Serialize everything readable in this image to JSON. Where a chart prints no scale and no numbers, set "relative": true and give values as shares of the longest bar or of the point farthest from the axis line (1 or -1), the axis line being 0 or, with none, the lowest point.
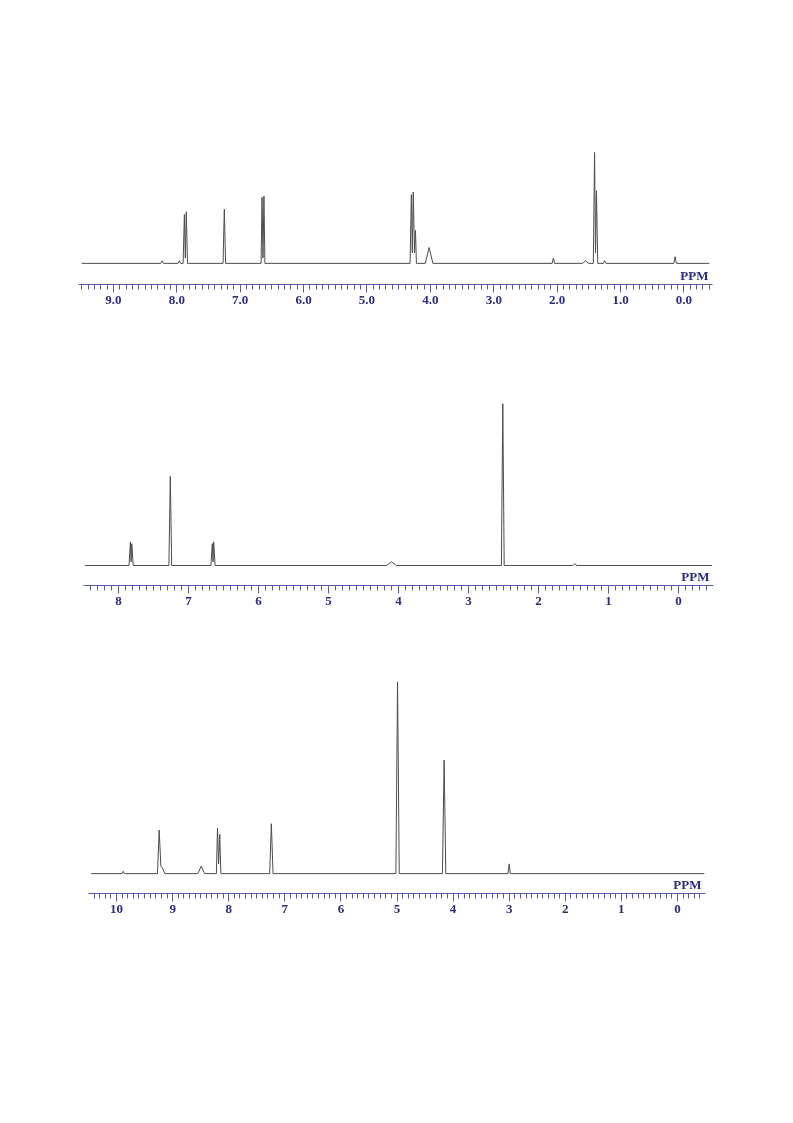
{
  "chart_data": [
    {
      "type": "line",
      "relative": true,
      "xlabel": "PPM",
      "color": "#4d4d4d",
      "xlim": [
        9.55,
        -0.45
      ],
      "xticks": [
        {
          "value": 9,
          "label": "9.0"
        },
        {
          "value": 8,
          "label": "8.0"
        },
        {
          "value": 7,
          "label": "7.0"
        },
        {
          "value": 6,
          "label": "6.0"
        },
        {
          "value": 5,
          "label": "5.0"
        },
        {
          "value": 4,
          "label": "4.0"
        },
        {
          "value": 3,
          "label": "3.0"
        },
        {
          "value": 2,
          "label": "2.0"
        },
        {
          "value": 1,
          "label": "1.0"
        },
        {
          "value": 0,
          "label": "0.0"
        },
        {
          "value": 9.5,
          "label": null
        },
        {
          "value": 9.4,
          "label": null
        },
        {
          "value": 9.3,
          "label": null
        },
        {
          "value": 9.2,
          "label": null
        },
        {
          "value": 9.1,
          "label": null
        },
        {
          "value": 8.9,
          "label": null
        },
        {
          "value": 8.8,
          "label": null
        },
        {
          "value": 8.7,
          "label": null
        },
        {
          "value": 8.6,
          "label": null
        },
        {
          "value": 8.5,
          "label": null
        },
        {
          "value": 8.4,
          "label": null
        },
        {
          "value": 8.3,
          "label": null
        },
        {
          "value": 8.2,
          "label": null
        },
        {
          "value": 8.1,
          "label": null
        },
        {
          "value": 7.9,
          "label": null
        },
        {
          "value": 7.8,
          "label": null
        },
        {
          "value": 7.7,
          "label": null
        },
        {
          "value": 7.6,
          "label": null
        },
        {
          "value": 7.5,
          "label": null
        },
        {
          "value": 7.4,
          "label": null
        },
        {
          "value": 7.3,
          "label": null
        },
        {
          "value": 7.2,
          "label": null
        },
        {
          "value": 7.1,
          "label": null
        },
        {
          "value": 6.9,
          "label": null
        },
        {
          "value": 6.8,
          "label": null
        },
        {
          "value": 6.7,
          "label": null
        },
        {
          "value": 6.6,
          "label": null
        },
        {
          "value": 6.5,
          "label": null
        },
        {
          "value": 6.4,
          "label": null
        },
        {
          "value": 6.3,
          "label": null
        },
        {
          "value": 6.2,
          "label": null
        },
        {
          "value": 6.1,
          "label": null
        },
        {
          "value": 5.9,
          "label": null
        },
        {
          "value": 5.8,
          "label": null
        },
        {
          "value": 5.7,
          "label": null
        },
        {
          "value": 5.6,
          "label": null
        },
        {
          "value": 5.5,
          "label": null
        },
        {
          "value": 5.4,
          "label": null
        },
        {
          "value": 5.3,
          "label": null
        },
        {
          "value": 5.2,
          "label": null
        },
        {
          "value": 5.1,
          "label": null
        },
        {
          "value": 4.9,
          "label": null
        },
        {
          "value": 4.8,
          "label": null
        },
        {
          "value": 4.7,
          "label": null
        },
        {
          "value": 4.6,
          "label": null
        },
        {
          "value": 4.5,
          "label": null
        },
        {
          "value": 4.4,
          "label": null
        },
        {
          "value": 4.3,
          "label": null
        },
        {
          "value": 4.2,
          "label": null
        },
        {
          "value": 4.1,
          "label": null
        },
        {
          "value": 3.9,
          "label": null
        },
        {
          "value": 3.8,
          "label": null
        },
        {
          "value": 3.7,
          "label": null
        },
        {
          "value": 3.6,
          "label": null
        },
        {
          "value": 3.5,
          "label": null
        },
        {
          "value": 3.4,
          "label": null
        },
        {
          "value": 3.3,
          "label": null
        },
        {
          "value": 3.2,
          "label": null
        },
        {
          "value": 3.1,
          "label": null
        },
        {
          "value": 2.9,
          "label": null
        },
        {
          "value": 2.8,
          "label": null
        },
        {
          "value": 2.7,
          "label": null
        },
        {
          "value": 2.6,
          "label": null
        },
        {
          "value": 2.5,
          "label": null
        },
        {
          "value": 2.4,
          "label": null
        },
        {
          "value": 2.3,
          "label": null
        },
        {
          "value": 2.2,
          "label": null
        },
        {
          "value": 2.1,
          "label": null
        },
        {
          "value": 1.9,
          "label": null
        },
        {
          "value": 1.8,
          "label": null
        },
        {
          "value": 1.7,
          "label": null
        },
        {
          "value": 1.6,
          "label": null
        },
        {
          "value": 1.5,
          "label": null
        },
        {
          "value": 1.4,
          "label": null
        },
        {
          "value": 1.3,
          "label": null
        },
        {
          "value": 1.2,
          "label": null
        },
        {
          "value": 1.1,
          "label": null
        },
        {
          "value": 0.9,
          "label": null
        },
        {
          "value": 0.8,
          "label": null
        },
        {
          "value": 0.7,
          "label": null
        },
        {
          "value": 0.6,
          "label": null
        },
        {
          "value": 0.5,
          "label": null
        },
        {
          "value": 0.4,
          "label": null
        },
        {
          "value": 0.3,
          "label": null
        },
        {
          "value": 0.2,
          "label": null
        },
        {
          "value": 0.1,
          "label": null
        },
        {
          "value": -0.1,
          "label": null
        },
        {
          "value": -0.2,
          "label": null
        },
        {
          "value": -0.3,
          "label": null
        },
        {
          "value": -0.4,
          "label": null
        }
      ],
      "x": [
        9.5,
        8.25,
        8.23,
        8.21,
        7.98,
        7.96,
        7.94,
        7.9,
        7.88,
        7.865,
        7.85,
        7.83,
        7.27,
        7.25,
        7.23,
        6.67,
        6.655,
        6.64,
        6.625,
        6.61,
        4.32,
        4.3,
        4.285,
        4.27,
        4.25,
        4.235,
        4.22,
        4.08,
        4.02,
        3.96,
        2.08,
        2.06,
        2.04,
        1.6,
        1.55,
        1.5,
        1.43,
        1.41,
        1.395,
        1.38,
        1.36,
        1.27,
        1.25,
        1.23,
        0.16,
        0.14,
        0.12,
        -0.4
      ],
      "values": [
        0.16,
        0.16,
        0.18,
        0.16,
        0.16,
        0.18,
        0.16,
        0.16,
        0.53,
        0.2,
        0.55,
        0.16,
        0.16,
        0.57,
        0.16,
        0.16,
        0.66,
        0.2,
        0.67,
        0.16,
        0.16,
        0.68,
        0.24,
        0.7,
        0.24,
        0.41,
        0.16,
        0.16,
        0.28,
        0.16,
        0.16,
        0.2,
        0.16,
        0.16,
        0.18,
        0.16,
        0.16,
        1,
        0.24,
        0.71,
        0.16,
        0.16,
        0.18,
        0.16,
        0.16,
        0.21,
        0.16,
        0.16
      ]
    },
    {
      "type": "line",
      "relative": true,
      "xlabel": "PPM",
      "color": "#4d4d4d",
      "xlim": [
        8.5,
        -0.5
      ],
      "xticks": [
        8,
        7,
        6,
        5,
        4,
        3,
        2,
        1,
        0,
        {
          "value": 8.4,
          "label": null
        },
        {
          "value": 8.3,
          "label": null
        },
        {
          "value": 8.2,
          "label": null
        },
        {
          "value": 8.1,
          "label": null
        },
        {
          "value": 7.9,
          "label": null
        },
        {
          "value": 7.8,
          "label": null
        },
        {
          "value": 7.7,
          "label": null
        },
        {
          "value": 7.6,
          "label": null
        },
        {
          "value": 7.5,
          "label": null
        },
        {
          "value": 7.4,
          "label": null
        },
        {
          "value": 7.3,
          "label": null
        },
        {
          "value": 7.2,
          "label": null
        },
        {
          "value": 7.1,
          "label": null
        },
        {
          "value": 6.9,
          "label": null
        },
        {
          "value": 6.8,
          "label": null
        },
        {
          "value": 6.7,
          "label": null
        },
        {
          "value": 6.6,
          "label": null
        },
        {
          "value": 6.5,
          "label": null
        },
        {
          "value": 6.4,
          "label": null
        },
        {
          "value": 6.3,
          "label": null
        },
        {
          "value": 6.2,
          "label": null
        },
        {
          "value": 6.1,
          "label": null
        },
        {
          "value": 5.9,
          "label": null
        },
        {
          "value": 5.8,
          "label": null
        },
        {
          "value": 5.7,
          "label": null
        },
        {
          "value": 5.6,
          "label": null
        },
        {
          "value": 5.5,
          "label": null
        },
        {
          "value": 5.4,
          "label": null
        },
        {
          "value": 5.3,
          "label": null
        },
        {
          "value": 5.2,
          "label": null
        },
        {
          "value": 5.1,
          "label": null
        },
        {
          "value": 4.9,
          "label": null
        },
        {
          "value": 4.8,
          "label": null
        },
        {
          "value": 4.7,
          "label": null
        },
        {
          "value": 4.6,
          "label": null
        },
        {
          "value": 4.5,
          "label": null
        },
        {
          "value": 4.4,
          "label": null
        },
        {
          "value": 4.3,
          "label": null
        },
        {
          "value": 4.2,
          "label": null
        },
        {
          "value": 4.1,
          "label": null
        },
        {
          "value": 3.9,
          "label": null
        },
        {
          "value": 3.8,
          "label": null
        },
        {
          "value": 3.7,
          "label": null
        },
        {
          "value": 3.6,
          "label": null
        },
        {
          "value": 3.5,
          "label": null
        },
        {
          "value": 3.4,
          "label": null
        },
        {
          "value": 3.3,
          "label": null
        },
        {
          "value": 3.2,
          "label": null
        },
        {
          "value": 3.1,
          "label": null
        },
        {
          "value": 2.9,
          "label": null
        },
        {
          "value": 2.8,
          "label": null
        },
        {
          "value": 2.7,
          "label": null
        },
        {
          "value": 2.6,
          "label": null
        },
        {
          "value": 2.5,
          "label": null
        },
        {
          "value": 2.4,
          "label": null
        },
        {
          "value": 2.3,
          "label": null
        },
        {
          "value": 2.2,
          "label": null
        },
        {
          "value": 2.1,
          "label": null
        },
        {
          "value": 1.9,
          "label": null
        },
        {
          "value": 1.8,
          "label": null
        },
        {
          "value": 1.7,
          "label": null
        },
        {
          "value": 1.6,
          "label": null
        },
        {
          "value": 1.5,
          "label": null
        },
        {
          "value": 1.4,
          "label": null
        },
        {
          "value": 1.3,
          "label": null
        },
        {
          "value": 1.2,
          "label": null
        },
        {
          "value": 1.1,
          "label": null
        },
        {
          "value": 0.9,
          "label": null
        },
        {
          "value": 0.8,
          "label": null
        },
        {
          "value": 0.7,
          "label": null
        },
        {
          "value": 0.6,
          "label": null
        },
        {
          "value": 0.5,
          "label": null
        },
        {
          "value": 0.4,
          "label": null
        },
        {
          "value": 0.3,
          "label": null
        },
        {
          "value": 0.2,
          "label": null
        },
        {
          "value": 0.1,
          "label": null
        },
        {
          "value": -0.1,
          "label": null
        },
        {
          "value": -0.2,
          "label": null
        },
        {
          "value": -0.3,
          "label": null
        },
        {
          "value": -0.4,
          "label": null
        }
      ],
      "x": [
        8.48,
        7.85,
        7.83,
        7.82,
        7.81,
        7.79,
        7.28,
        7.26,
        7.24,
        6.68,
        6.66,
        6.65,
        6.64,
        6.62,
        4.17,
        4.1,
        4.03,
        2.53,
        2.51,
        2.49,
        1.51,
        1.48,
        1.45,
        -0.48
      ],
      "values": [
        0.11,
        0.11,
        0.24,
        0.13,
        0.23,
        0.11,
        0.11,
        0.6,
        0.11,
        0.11,
        0.23,
        0.13,
        0.24,
        0.11,
        0.11,
        0.13,
        0.11,
        0.11,
        1,
        0.11,
        0.11,
        0.12,
        0.11,
        0.11
      ]
    },
    {
      "type": "line",
      "relative": true,
      "xlabel": "PPM",
      "color": "#4d4d4d",
      "xlim": [
        10.5,
        -0.5
      ],
      "xticks": [
        10,
        9,
        8,
        7,
        6,
        5,
        4,
        3,
        2,
        1,
        0,
        {
          "value": 10.4,
          "label": null
        },
        {
          "value": 10.3,
          "label": null
        },
        {
          "value": 10.2,
          "label": null
        },
        {
          "value": 10.1,
          "label": null
        },
        {
          "value": 9.9,
          "label": null
        },
        {
          "value": 9.8,
          "label": null
        },
        {
          "value": 9.7,
          "label": null
        },
        {
          "value": 9.6,
          "label": null
        },
        {
          "value": 9.5,
          "label": null
        },
        {
          "value": 9.4,
          "label": null
        },
        {
          "value": 9.3,
          "label": null
        },
        {
          "value": 9.2,
          "label": null
        },
        {
          "value": 9.1,
          "label": null
        },
        {
          "value": 8.9,
          "label": null
        },
        {
          "value": 8.8,
          "label": null
        },
        {
          "value": 8.7,
          "label": null
        },
        {
          "value": 8.6,
          "label": null
        },
        {
          "value": 8.5,
          "label": null
        },
        {
          "value": 8.4,
          "label": null
        },
        {
          "value": 8.3,
          "label": null
        },
        {
          "value": 8.2,
          "label": null
        },
        {
          "value": 8.1,
          "label": null
        },
        {
          "value": 7.9,
          "label": null
        },
        {
          "value": 7.8,
          "label": null
        },
        {
          "value": 7.7,
          "label": null
        },
        {
          "value": 7.6,
          "label": null
        },
        {
          "value": 7.5,
          "label": null
        },
        {
          "value": 7.4,
          "label": null
        },
        {
          "value": 7.3,
          "label": null
        },
        {
          "value": 7.2,
          "label": null
        },
        {
          "value": 7.1,
          "label": null
        },
        {
          "value": 6.9,
          "label": null
        },
        {
          "value": 6.8,
          "label": null
        },
        {
          "value": 6.7,
          "label": null
        },
        {
          "value": 6.6,
          "label": null
        },
        {
          "value": 6.5,
          "label": null
        },
        {
          "value": 6.4,
          "label": null
        },
        {
          "value": 6.3,
          "label": null
        },
        {
          "value": 6.2,
          "label": null
        },
        {
          "value": 6.1,
          "label": null
        },
        {
          "value": 5.9,
          "label": null
        },
        {
          "value": 5.8,
          "label": null
        },
        {
          "value": 5.7,
          "label": null
        },
        {
          "value": 5.6,
          "label": null
        },
        {
          "value": 5.5,
          "label": null
        },
        {
          "value": 5.4,
          "label": null
        },
        {
          "value": 5.3,
          "label": null
        },
        {
          "value": 5.2,
          "label": null
        },
        {
          "value": 5.1,
          "label": null
        },
        {
          "value": 4.9,
          "label": null
        },
        {
          "value": 4.8,
          "label": null
        },
        {
          "value": 4.7,
          "label": null
        },
        {
          "value": 4.6,
          "label": null
        },
        {
          "value": 4.5,
          "label": null
        },
        {
          "value": 4.4,
          "label": null
        },
        {
          "value": 4.3,
          "label": null
        },
        {
          "value": 4.2,
          "label": null
        },
        {
          "value": 4.1,
          "label": null
        },
        {
          "value": 3.9,
          "label": null
        },
        {
          "value": 3.8,
          "label": null
        },
        {
          "value": 3.7,
          "label": null
        },
        {
          "value": 3.6,
          "label": null
        },
        {
          "value": 3.5,
          "label": null
        },
        {
          "value": 3.4,
          "label": null
        },
        {
          "value": 3.3,
          "label": null
        },
        {
          "value": 3.2,
          "label": null
        },
        {
          "value": 3.1,
          "label": null
        },
        {
          "value": 2.9,
          "label": null
        },
        {
          "value": 2.8,
          "label": null
        },
        {
          "value": 2.7,
          "label": null
        },
        {
          "value": 2.6,
          "label": null
        },
        {
          "value": 2.5,
          "label": null
        },
        {
          "value": 2.4,
          "label": null
        },
        {
          "value": 2.3,
          "label": null
        },
        {
          "value": 2.2,
          "label": null
        },
        {
          "value": 2.1,
          "label": null
        },
        {
          "value": 1.9,
          "label": null
        },
        {
          "value": 1.8,
          "label": null
        },
        {
          "value": 1.7,
          "label": null
        },
        {
          "value": 1.6,
          "label": null
        },
        {
          "value": 1.5,
          "label": null
        },
        {
          "value": 1.4,
          "label": null
        },
        {
          "value": 1.3,
          "label": null
        },
        {
          "value": 1.2,
          "label": null
        },
        {
          "value": 1.1,
          "label": null
        },
        {
          "value": 0.9,
          "label": null
        },
        {
          "value": 0.8,
          "label": null
        },
        {
          "value": 0.7,
          "label": null
        },
        {
          "value": 0.6,
          "label": null
        },
        {
          "value": 0.5,
          "label": null
        },
        {
          "value": 0.4,
          "label": null
        },
        {
          "value": 0.3,
          "label": null
        },
        {
          "value": 0.2,
          "label": null
        },
        {
          "value": 0.1,
          "label": null
        },
        {
          "value": -0.1,
          "label": null
        },
        {
          "value": -0.2,
          "label": null
        },
        {
          "value": -0.3,
          "label": null
        },
        {
          "value": -0.4,
          "label": null
        }
      ],
      "x": [
        10.45,
        9.9,
        9.88,
        9.86,
        9.27,
        9.24,
        9.21,
        9.18,
        9.14,
        8.55,
        8.49,
        8.43,
        8.22,
        8.2,
        8.18,
        8.16,
        8.14,
        7.27,
        7.24,
        7.21,
        5.02,
        4.99,
        4.96,
        4.19,
        4.16,
        4.13,
        3.02,
        3.0,
        2.98,
        -0.48
      ],
      "values": [
        0.094,
        0.094,
        0.105,
        0.094,
        0.094,
        0.3,
        0.13,
        0.12,
        0.094,
        0.094,
        0.13,
        0.094,
        0.094,
        0.31,
        0.14,
        0.28,
        0.094,
        0.094,
        0.33,
        0.094,
        0.094,
        1,
        0.094,
        0.094,
        0.63,
        0.094,
        0.094,
        0.14,
        0.094,
        0.094
      ]
    }
  ]
}
